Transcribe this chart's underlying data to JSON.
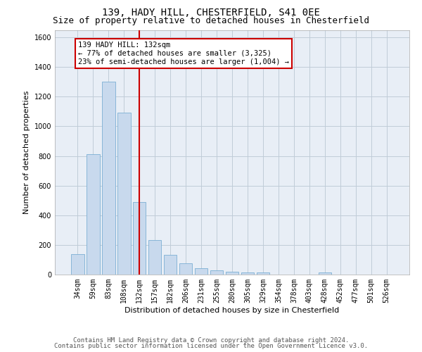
{
  "title1": "139, HADY HILL, CHESTERFIELD, S41 0EE",
  "title2": "Size of property relative to detached houses in Chesterfield",
  "xlabel": "Distribution of detached houses by size in Chesterfield",
  "ylabel": "Number of detached properties",
  "categories": [
    "34sqm",
    "59sqm",
    "83sqm",
    "108sqm",
    "132sqm",
    "157sqm",
    "182sqm",
    "206sqm",
    "231sqm",
    "255sqm",
    "280sqm",
    "305sqm",
    "329sqm",
    "354sqm",
    "378sqm",
    "403sqm",
    "428sqm",
    "452sqm",
    "477sqm",
    "501sqm",
    "526sqm"
  ],
  "values": [
    140,
    810,
    1300,
    1090,
    490,
    235,
    135,
    75,
    45,
    30,
    20,
    15,
    15,
    0,
    0,
    0,
    15,
    0,
    0,
    0,
    0
  ],
  "bar_color": "#c8d9ed",
  "bar_edge_color": "#7bafd4",
  "highlight_index": 4,
  "highlight_line_color": "#cc0000",
  "ylim": [
    0,
    1650
  ],
  "yticks": [
    0,
    200,
    400,
    600,
    800,
    1000,
    1200,
    1400,
    1600
  ],
  "annotation_text": "139 HADY HILL: 132sqm\n← 77% of detached houses are smaller (3,325)\n23% of semi-detached houses are larger (1,004) →",
  "annotation_box_color": "#ffffff",
  "annotation_box_edge_color": "#cc0000",
  "footer1": "Contains HM Land Registry data © Crown copyright and database right 2024.",
  "footer2": "Contains public sector information licensed under the Open Government Licence v3.0.",
  "bg_color": "#ffffff",
  "plot_bg_color": "#e8eef6",
  "grid_color": "#c0ccd8",
  "title_fontsize": 10,
  "subtitle_fontsize": 9,
  "tick_fontsize": 7,
  "ylabel_fontsize": 8,
  "xlabel_fontsize": 8,
  "annotation_fontsize": 7.5,
  "footer_fontsize": 6.5
}
